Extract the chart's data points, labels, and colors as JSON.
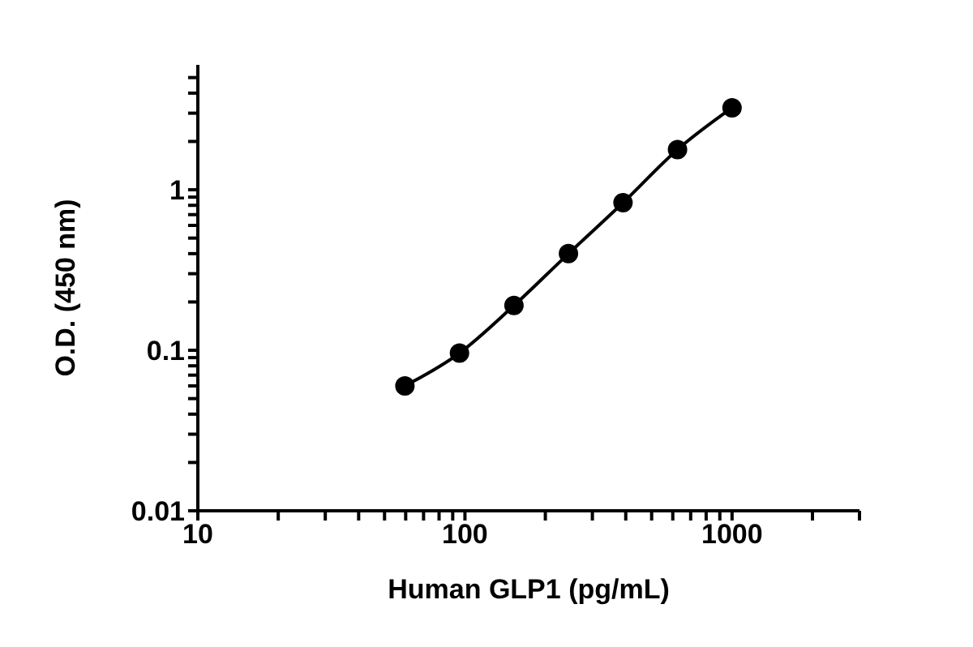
{
  "chart_data": {
    "type": "line",
    "xlabel": "Human GLP1 (pg/mL)",
    "ylabel": "O.D. (450 nm)",
    "log": "xy",
    "marker": "circle",
    "line_style": "solid",
    "grid": false,
    "legend": false,
    "x": [
      59.6,
      95.4,
      152.6,
      244.1,
      390.6,
      625,
      1000
    ],
    "series": [
      {
        "color": "#000000",
        "values": [
          0.06,
          0.096,
          0.19,
          0.4,
          0.83,
          1.78,
          3.24
        ]
      }
    ],
    "xlim": [
      10,
      3000
    ],
    "xticks": [
      10,
      {
        "value": 20,
        "label": null
      },
      {
        "value": 30,
        "label": null
      },
      {
        "value": 40,
        "label": null
      },
      {
        "value": 50,
        "label": null
      },
      {
        "value": 60,
        "label": null
      },
      {
        "value": 70,
        "label": null
      },
      {
        "value": 80,
        "label": null
      },
      {
        "value": 90,
        "label": null
      },
      100,
      {
        "value": 200,
        "label": null
      },
      {
        "value": 300,
        "label": null
      },
      {
        "value": 400,
        "label": null
      },
      {
        "value": 500,
        "label": null
      },
      {
        "value": 600,
        "label": null
      },
      {
        "value": 700,
        "label": null
      },
      {
        "value": 800,
        "label": null
      },
      {
        "value": 900,
        "label": null
      },
      1000,
      {
        "value": 2000,
        "label": null
      },
      {
        "value": 3000,
        "label": null
      }
    ],
    "ylim": [
      0.01,
      6
    ],
    "yticks": [
      0.01,
      {
        "value": 0.02,
        "label": null
      },
      {
        "value": 0.03,
        "label": null
      },
      {
        "value": 0.04,
        "label": null
      },
      {
        "value": 0.05,
        "label": null
      },
      {
        "value": 0.06,
        "label": null
      },
      {
        "value": 0.07,
        "label": null
      },
      {
        "value": 0.08,
        "label": null
      },
      {
        "value": 0.09,
        "label": null
      },
      0.1,
      {
        "value": 0.2,
        "label": null
      },
      {
        "value": 0.3,
        "label": null
      },
      {
        "value": 0.4,
        "label": null
      },
      {
        "value": 0.5,
        "label": null
      },
      {
        "value": 0.6,
        "label": null
      },
      {
        "value": 0.7,
        "label": null
      },
      {
        "value": 0.8,
        "label": null
      },
      {
        "value": 0.9,
        "label": null
      },
      1,
      {
        "value": 2,
        "label": null
      },
      {
        "value": 3,
        "label": null
      },
      {
        "value": 4,
        "label": null
      },
      {
        "value": 5,
        "label": null
      }
    ]
  }
}
